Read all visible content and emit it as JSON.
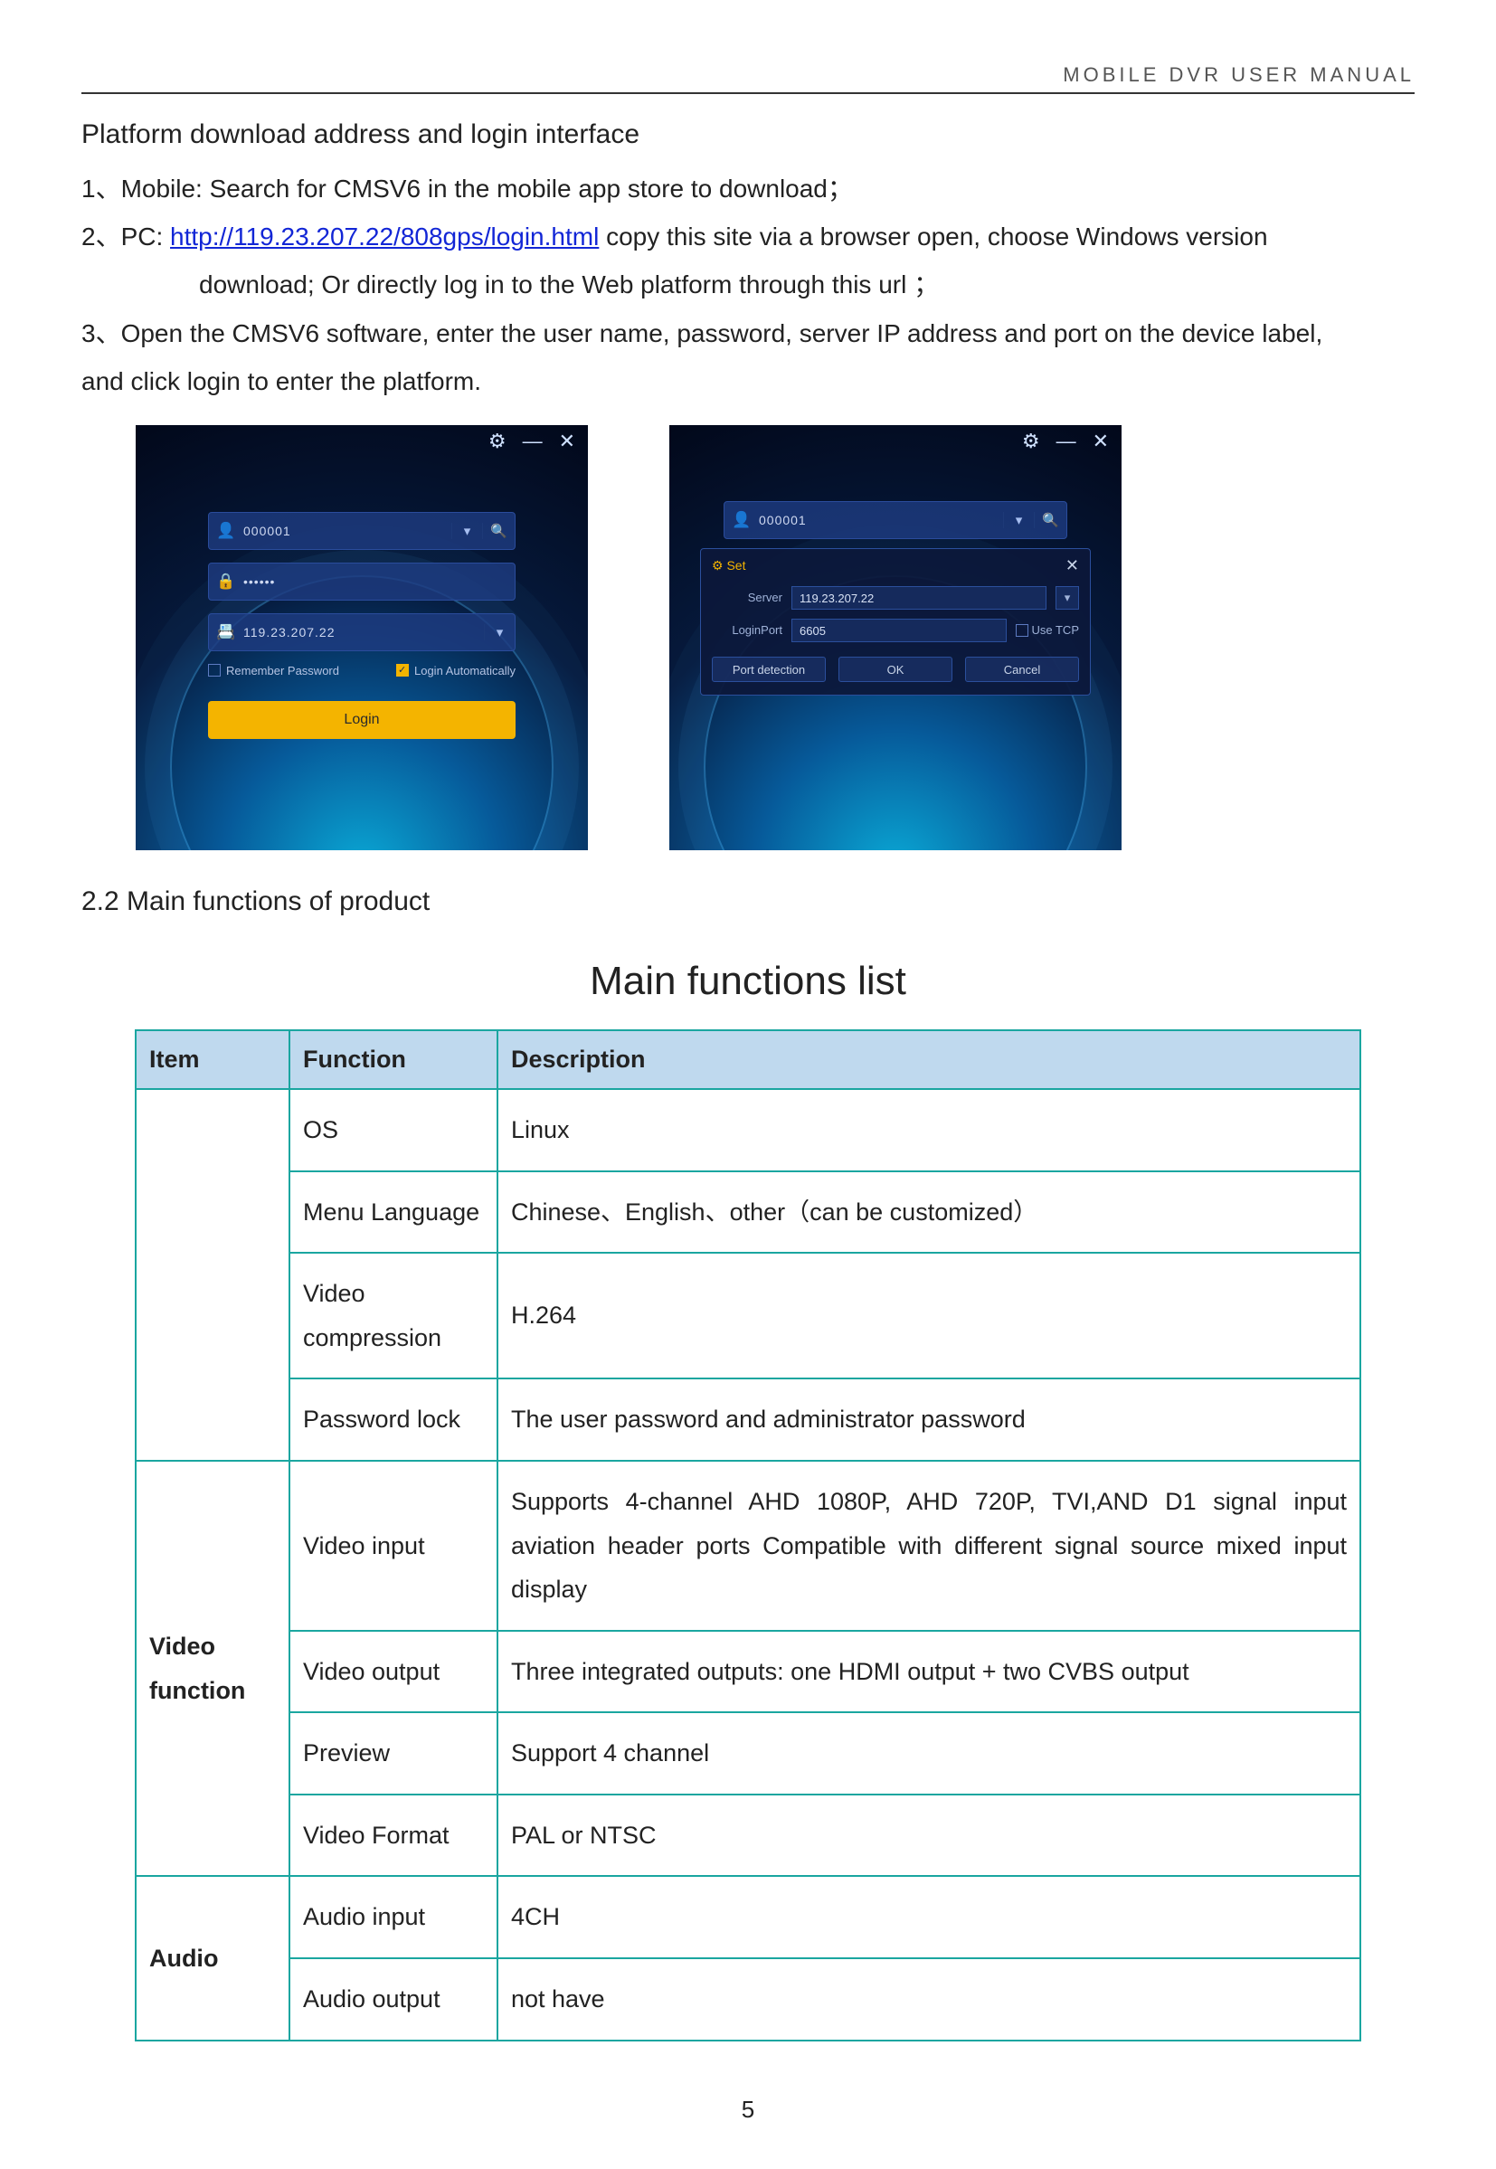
{
  "header": {
    "running_title": "MOBILE  DVR  USER  MANUAL"
  },
  "intro": {
    "title": "Platform download address and login interface",
    "line1": "1、Mobile: Search for CMSV6 in the mobile app store to download；",
    "line2a": "2、PC: ",
    "line2_url_text": "http://119.23.207.22/808gps/login.html",
    "line2b": " copy this site via a browser open, choose Windows version",
    "line2c": "download;   Or directly log in to the Web platform through this url  ；",
    "line3a": "3、Open the CMSV6 software, enter the user name, password, server IP address and port on the device label,",
    "line3b": "and click login to enter the platform."
  },
  "login_left": {
    "gear": "⚙",
    "minimize": "—",
    "close": "✕",
    "user_icon": "👤",
    "user_value": "000001",
    "lock_icon": "🔒",
    "pw_value": "••••••",
    "srv_icon": "📇",
    "srv_value": "119.23.207.22",
    "remember_label": "Remember Password",
    "auto_label": "Login Automatically",
    "remember_checked": false,
    "auto_checked": true,
    "login_btn": "Login",
    "search_icon": "🔍",
    "dd_icon": "▾"
  },
  "login_right": {
    "gear": "⚙",
    "minimize": "—",
    "close": "✕",
    "user_icon": "👤",
    "user_value": "000001",
    "search_icon": "🔍",
    "dd_icon": "▾",
    "popup_title": "Set",
    "popup_close": "✕",
    "server_label": "Server",
    "server_value": "119.23.207.22",
    "port_label": "LoginPort",
    "port_value": "6605",
    "usetcp_label": "Use TCP",
    "btn_port": "Port detection",
    "btn_ok": "OK",
    "btn_cancel": "Cancel"
  },
  "section22": "2.2    Main functions of product",
  "table": {
    "title": "Main functions list",
    "headers": {
      "item": "Item",
      "function": "Function",
      "description": "Description"
    },
    "rows": [
      {
        "item": "",
        "function": "OS",
        "description": "Linux"
      },
      {
        "item": "",
        "function": "Menu Language",
        "description": "Chinese、English、other（can be customized）"
      },
      {
        "item": "",
        "function": "Video compression",
        "description": "H.264"
      },
      {
        "item": "",
        "function": "Password lock",
        "description": "The user password and administrator password"
      },
      {
        "item": "Video function",
        "function": "Video input",
        "description": "Supports 4-channel AHD 1080P, AHD 720P, TVI,AND D1 signal input aviation header ports\nCompatible with different signal source mixed input display"
      },
      {
        "item": "",
        "function": "Video output",
        "description": "Three integrated outputs: one HDMI output + two CVBS output"
      },
      {
        "item": "",
        "function": "Preview",
        "description": "Support 4 channel"
      },
      {
        "item": "",
        "function": "Video Format",
        "description": "PAL or NTSC"
      },
      {
        "item": "Audio",
        "function": "Audio input",
        "description": "4CH"
      },
      {
        "item": "",
        "function": "Audio output",
        "description": "not have"
      }
    ]
  },
  "page_number": "5"
}
